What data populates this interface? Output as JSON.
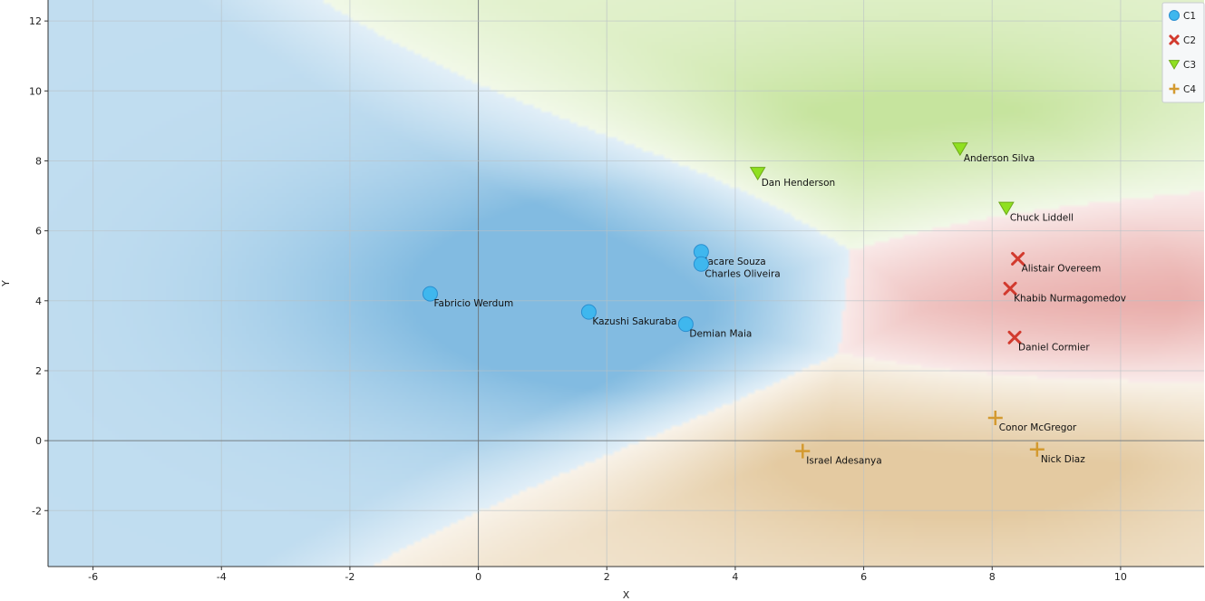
{
  "chart_data": {
    "type": "scatter",
    "xlabel": "X",
    "ylabel": "Y",
    "xlim": [
      -6.7,
      11.3
    ],
    "ylim": [
      -3.6,
      12.6
    ],
    "xticks": [
      -6,
      -4,
      -2,
      0,
      2,
      4,
      6,
      8,
      10
    ],
    "yticks": [
      -2,
      0,
      2,
      4,
      6,
      8,
      10,
      12
    ],
    "tick_labels_x": [
      "-6",
      "-4",
      "-2",
      "0",
      "2",
      "4",
      "6",
      "8",
      "10"
    ],
    "tick_labels_y": [
      "-2",
      "0",
      "2",
      "4",
      "6",
      "8",
      "10",
      "12"
    ],
    "grid": true,
    "legend_position": "top-right",
    "series": [
      {
        "name": "C1",
        "marker": "circle",
        "color": "#3fb7ee",
        "region_color": "#5fa8d8",
        "points": [
          {
            "label": "Fabricio Werdum",
            "x": -0.75,
            "y": 4.2
          },
          {
            "label": "Kazushi Sakuraba",
            "x": 1.72,
            "y": 3.68
          },
          {
            "label": "Demian Maia",
            "x": 3.23,
            "y": 3.33
          },
          {
            "label": "Jacare Souza",
            "x": 3.47,
            "y": 5.4
          },
          {
            "label": "Charles Oliveira",
            "x": 3.47,
            "y": 5.05
          }
        ]
      },
      {
        "name": "C2",
        "marker": "x",
        "color": "#d23a2e",
        "region_color": "#e08a86",
        "points": [
          {
            "label": "Alistair Overeem",
            "x": 8.4,
            "y": 5.2
          },
          {
            "label": "Khabib Nurmagomedov",
            "x": 8.28,
            "y": 4.35
          },
          {
            "label": "Daniel Cormier",
            "x": 8.35,
            "y": 2.95
          }
        ]
      },
      {
        "name": "C3",
        "marker": "triangle-down",
        "color": "#8fe020",
        "region_color": "#b6dc82",
        "points": [
          {
            "label": "Dan Henderson",
            "x": 4.35,
            "y": 7.65
          },
          {
            "label": "Anderson Silva",
            "x": 7.5,
            "y": 8.35
          },
          {
            "label": "Chuck Liddell",
            "x": 8.22,
            "y": 6.65
          }
        ]
      },
      {
        "name": "C4",
        "marker": "plus",
        "color": "#d39a30",
        "region_color": "#dcbb86",
        "points": [
          {
            "label": "Conor McGregor",
            "x": 8.05,
            "y": 0.65
          },
          {
            "label": "Nick Diaz",
            "x": 8.7,
            "y": -0.25
          },
          {
            "label": "Israel Adesanya",
            "x": 5.05,
            "y": -0.3
          }
        ]
      }
    ]
  }
}
